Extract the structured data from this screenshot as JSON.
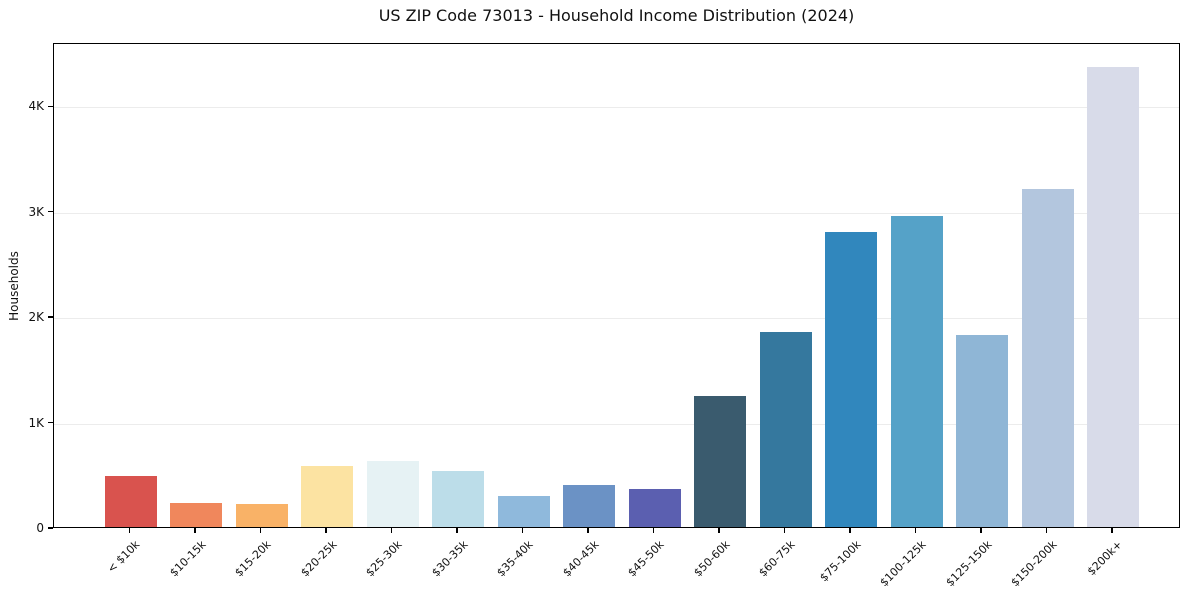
{
  "chart_data": {
    "type": "bar",
    "title": "US ZIP Code 73013 - Household Income Distribution (2024)",
    "xlabel": "",
    "ylabel": "Households",
    "categories": [
      "< $10k",
      "$10-15k",
      "$15-20k",
      "$20-25k",
      "$25-30k",
      "$30-35k",
      "$35-40k",
      "$40-45k",
      "$45-50k",
      "$50-60k",
      "$60-75k",
      "$75-100k",
      "$100-125k",
      "$125-150k",
      "$150-200k",
      "$200k+"
    ],
    "values": [
      480,
      225,
      215,
      580,
      630,
      530,
      290,
      395,
      360,
      1240,
      1845,
      2800,
      2950,
      1820,
      3210,
      4360
    ],
    "bar_colors": [
      "#d9534e",
      "#f0875c",
      "#f9b267",
      "#fce3a2",
      "#e6f2f4",
      "#bcdde9",
      "#8fb9dc",
      "#6b92c5",
      "#5b5fb0",
      "#3a5b6e",
      "#35789e",
      "#3187bd",
      "#55a2c8",
      "#8fb6d6",
      "#b3c6de",
      "#d8dbe9"
    ],
    "ylim": [
      0,
      4600
    ],
    "ytick_values": [
      0,
      1000,
      2000,
      3000,
      4000
    ],
    "ytick_labels": [
      "0",
      "1K",
      "2K",
      "3K",
      "4K"
    ],
    "x_tick_rotation": 45,
    "grid": "horizontal",
    "grid_color": "#ececec",
    "frame_color": "#000000",
    "background_color": "#ffffff",
    "legend": "none"
  }
}
